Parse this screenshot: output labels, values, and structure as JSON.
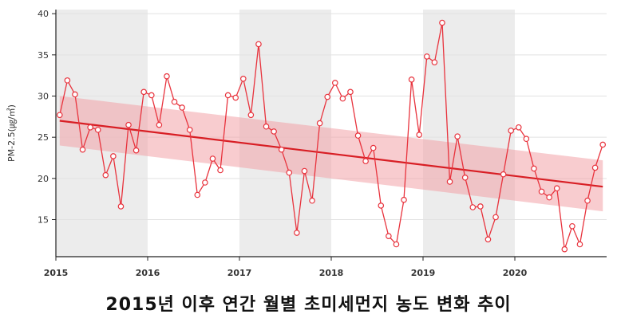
{
  "chart_data": {
    "type": "line",
    "title": "2015년 이후 연간 월별 초미세먼지 농도 변화 추이",
    "ylabel": "PM-2.5(㎍/㎥)",
    "xlabel": "",
    "x_ticks": [
      "2015",
      "2016",
      "2017",
      "2018",
      "2019",
      "2020"
    ],
    "y_ticks": [
      15,
      20,
      25,
      30,
      35,
      40
    ],
    "xlim": [
      2015,
      2021
    ],
    "ylim": [
      10.5,
      40.5
    ],
    "grid": true,
    "colors": {
      "line": "#e8333d",
      "trend": "#d81e24",
      "band": "#f2a3a8",
      "shade": "#ececec"
    },
    "series": [
      {
        "values": [
          27.7,
          31.9,
          30.2,
          23.5,
          26.2,
          25.9,
          20.4,
          22.7,
          16.6,
          26.5,
          23.4,
          30.5,
          30.1,
          26.5,
          32.4,
          29.3,
          28.6,
          25.9,
          18.0,
          19.5,
          22.4,
          21.0,
          30.1,
          29.8,
          32.1,
          27.7,
          36.3,
          26.3,
          25.7,
          23.5,
          20.7,
          13.4,
          20.9,
          17.3,
          26.7,
          29.9,
          31.6,
          29.7,
          30.5,
          25.2,
          22.1,
          23.7,
          16.7,
          13.0,
          12.0,
          17.4,
          32.0,
          25.3,
          34.8,
          34.1,
          38.9,
          19.6,
          25.1,
          20.1,
          16.5,
          16.6,
          12.6,
          15.3,
          20.5,
          25.8,
          26.2,
          24.8,
          21.2,
          18.4,
          17.7,
          18.8,
          11.4,
          14.2,
          12.0,
          17.3,
          21.3,
          24.1
        ]
      }
    ],
    "trend": {
      "start": 27.0,
      "end": 19.0,
      "band_start": [
        24.0,
        30.0
      ],
      "band_end": [
        16.0,
        22.2
      ]
    }
  }
}
